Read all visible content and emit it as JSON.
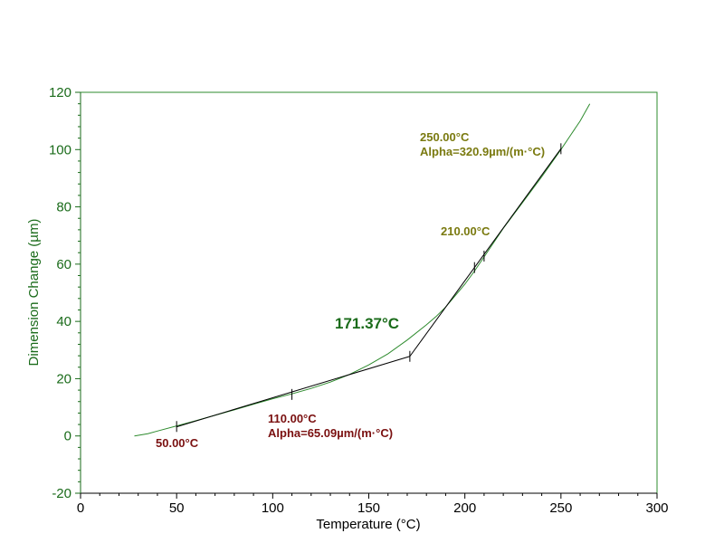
{
  "colors": {
    "curve": "#2e8b2e",
    "y_axis": "#1a6b1a",
    "tangent": "#000000",
    "low_annotation": "#7a1010",
    "high_annotation": "#7a7a10",
    "onset_annotation": "#1a6b1a"
  },
  "chart_data": {
    "type": "line",
    "xlabel": "Temperature (°C)",
    "ylabel": "Dimension Change (µm)",
    "xlim": [
      0,
      300
    ],
    "ylim": [
      -20,
      120
    ],
    "xticks": [
      0,
      50,
      100,
      150,
      200,
      250,
      300
    ],
    "yticks": [
      -20,
      0,
      20,
      40,
      60,
      80,
      100,
      120
    ],
    "grid": false,
    "series": [
      {
        "x": [
          28,
          35,
          40,
          50,
          60,
          70,
          80,
          90,
          100,
          110,
          120,
          130,
          140,
          150,
          160,
          170,
          180,
          185,
          190,
          200,
          205,
          210,
          220,
          230,
          240,
          250,
          255,
          260,
          265
        ],
        "y": [
          0,
          0.8,
          1.7,
          3.5,
          5.3,
          7.2,
          9.1,
          11.1,
          13.0,
          14.7,
          16.6,
          18.8,
          21.5,
          24.8,
          28.7,
          33.5,
          38.8,
          41.7,
          45.0,
          53.0,
          57.6,
          62.5,
          72.5,
          81.5,
          90.5,
          100.0,
          105.0,
          110.0,
          116.0
        ]
      }
    ],
    "tangent_lines": [
      {
        "x": [
          50,
          171.37
        ],
        "y": [
          3.2,
          27.8
        ]
      },
      {
        "x": [
          171.37,
          250
        ],
        "y": [
          27.8,
          100.3
        ]
      }
    ],
    "markers": [
      {
        "x": 50,
        "y": 3.3
      },
      {
        "x": 110,
        "y": 14.5
      },
      {
        "x": 171.37,
        "y": 27.8
      },
      {
        "x": 205,
        "y": 58.8
      },
      {
        "x": 210,
        "y": 62.8
      },
      {
        "x": 250,
        "y": 100.3
      }
    ],
    "annotations": {
      "low_start": "50.00°C",
      "low_end": "110.00°C",
      "low_alpha": "Alpha=65.09µm/(m·°C)",
      "high_start": "210.00°C",
      "high_end": "250.00°C",
      "high_alpha": "Alpha=320.9µm/(m·°C)",
      "onset": "171.37°C"
    }
  }
}
